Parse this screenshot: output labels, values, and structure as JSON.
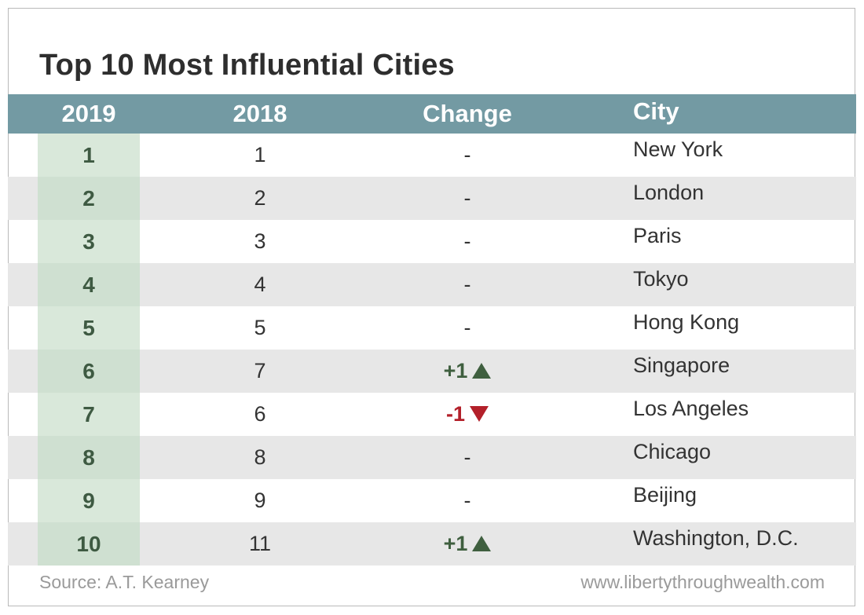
{
  "title": "Top 10 Most Influential Cities",
  "colors": {
    "header_bg": "#739aa3",
    "rank_col_bg": "#d9e8da",
    "up": "#3f5f3f",
    "down": "#b3202a"
  },
  "chart_data": {
    "type": "table",
    "title": "Top 10 Most Influential Cities",
    "columns": [
      "2019",
      "2018",
      "Change",
      "City"
    ],
    "rows": [
      {
        "rank_2019": "1",
        "rank_2018": "1",
        "change": "-",
        "direction": "none",
        "city": "New York"
      },
      {
        "rank_2019": "2",
        "rank_2018": "2",
        "change": "-",
        "direction": "none",
        "city": "London"
      },
      {
        "rank_2019": "3",
        "rank_2018": "3",
        "change": "-",
        "direction": "none",
        "city": "Paris"
      },
      {
        "rank_2019": "4",
        "rank_2018": "4",
        "change": "-",
        "direction": "none",
        "city": "Tokyo"
      },
      {
        "rank_2019": "5",
        "rank_2018": "5",
        "change": "-",
        "direction": "none",
        "city": "Hong Kong"
      },
      {
        "rank_2019": "6",
        "rank_2018": "7",
        "change": "+1",
        "direction": "up",
        "city": "Singapore"
      },
      {
        "rank_2019": "7",
        "rank_2018": "6",
        "change": "-1",
        "direction": "down",
        "city": "Los Angeles"
      },
      {
        "rank_2019": "8",
        "rank_2018": "8",
        "change": "-",
        "direction": "none",
        "city": "Chicago"
      },
      {
        "rank_2019": "9",
        "rank_2018": "9",
        "change": "-",
        "direction": "none",
        "city": "Beijing"
      },
      {
        "rank_2019": "10",
        "rank_2018": "11",
        "change": "+1",
        "direction": "up",
        "city": "Washington, D.C."
      }
    ]
  },
  "footer": {
    "source": "Source: A.T. Kearney",
    "website": "www.libertythroughwealth.com"
  }
}
